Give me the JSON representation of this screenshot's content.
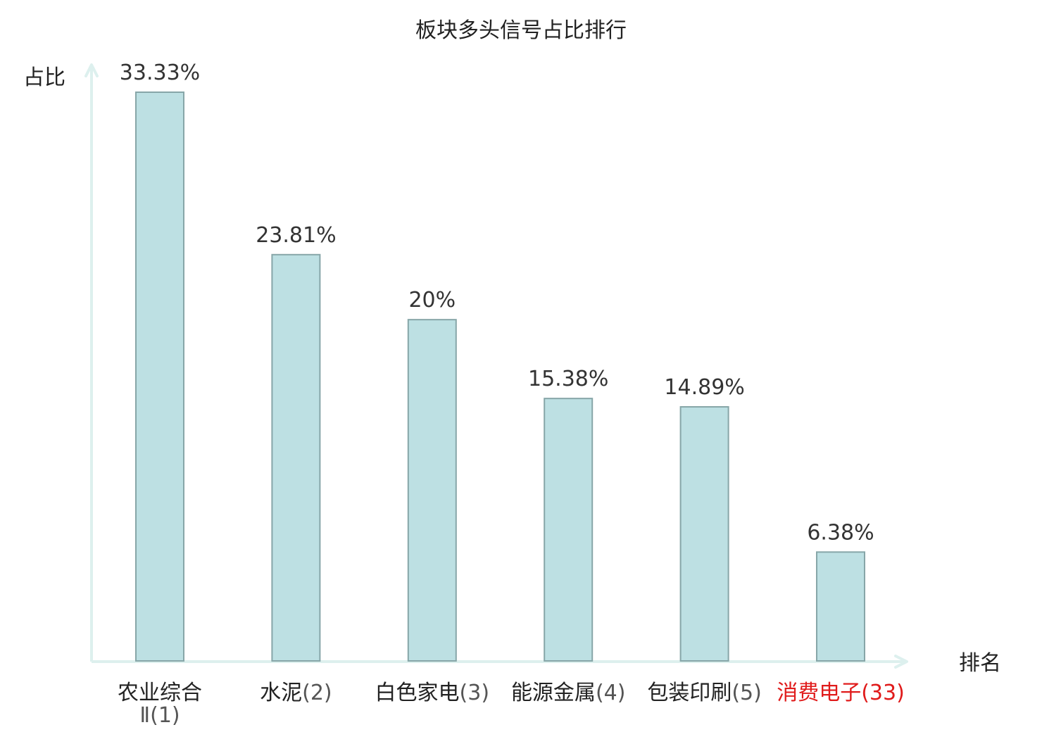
{
  "chart_data": {
    "type": "bar",
    "title": "板块多头信号占比排行",
    "xlabel": "排名",
    "ylabel": "占比",
    "categories": [
      {
        "name": "农业综合Ⅱ",
        "rank": "(1)",
        "highlight": false
      },
      {
        "name": "水泥",
        "rank": "(2)",
        "highlight": false
      },
      {
        "name": "白色家电",
        "rank": "(3)",
        "highlight": false
      },
      {
        "name": "能源金属",
        "rank": "(4)",
        "highlight": false
      },
      {
        "name": "包装印刷",
        "rank": "(5)",
        "highlight": false
      },
      {
        "name": "消费电子",
        "rank": "(33)",
        "highlight": true
      }
    ],
    "values": [
      33.33,
      23.81,
      20,
      15.38,
      14.89,
      6.38
    ],
    "value_labels": [
      "33.33%",
      "23.81%",
      "20%",
      "15.38%",
      "14.89%",
      "6.38%"
    ],
    "ylim": [
      0,
      33.33
    ],
    "grid": false,
    "legend": "none"
  },
  "colors": {
    "bar_fill": "#bde0e3",
    "bar_stroke": "#87a6a8",
    "axis": "#ddf0ee",
    "text": "#222222",
    "highlight": "#e01b1b"
  }
}
